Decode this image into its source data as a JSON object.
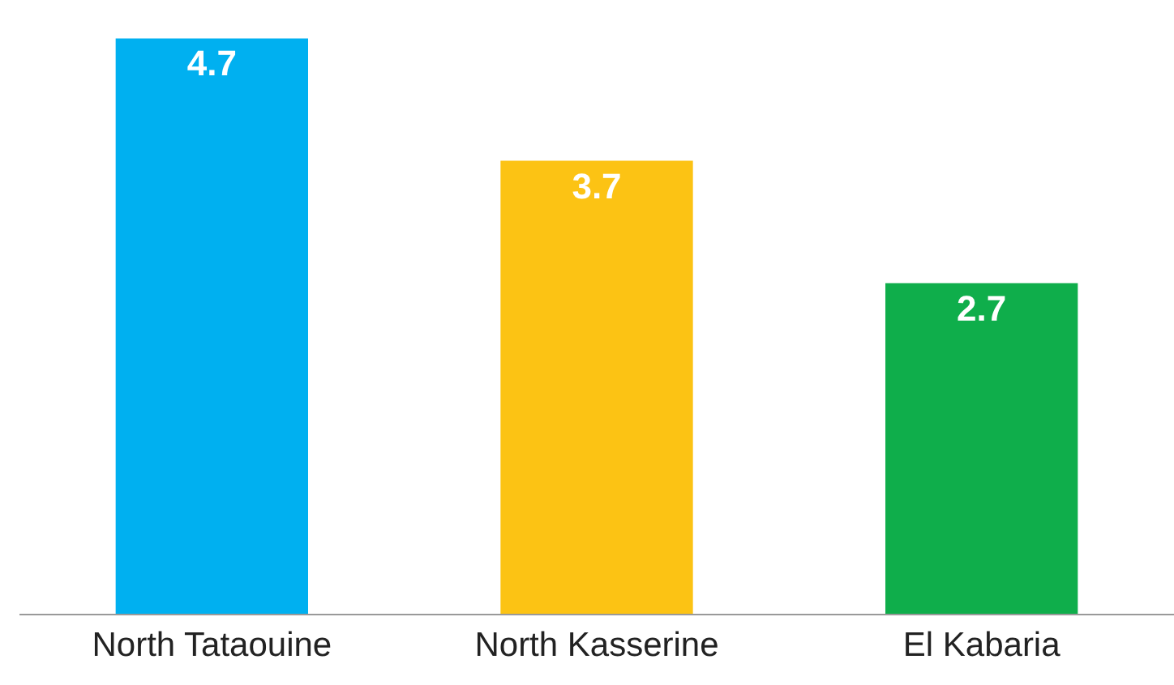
{
  "chart_data": {
    "type": "bar",
    "categories": [
      "North Tataouine",
      "North Kasserine",
      "El Kabaria"
    ],
    "values": [
      4.7,
      3.7,
      2.7
    ],
    "colors": [
      "#00b0f0",
      "#fcc314",
      "#0fae4b"
    ],
    "data_labels": true
  }
}
